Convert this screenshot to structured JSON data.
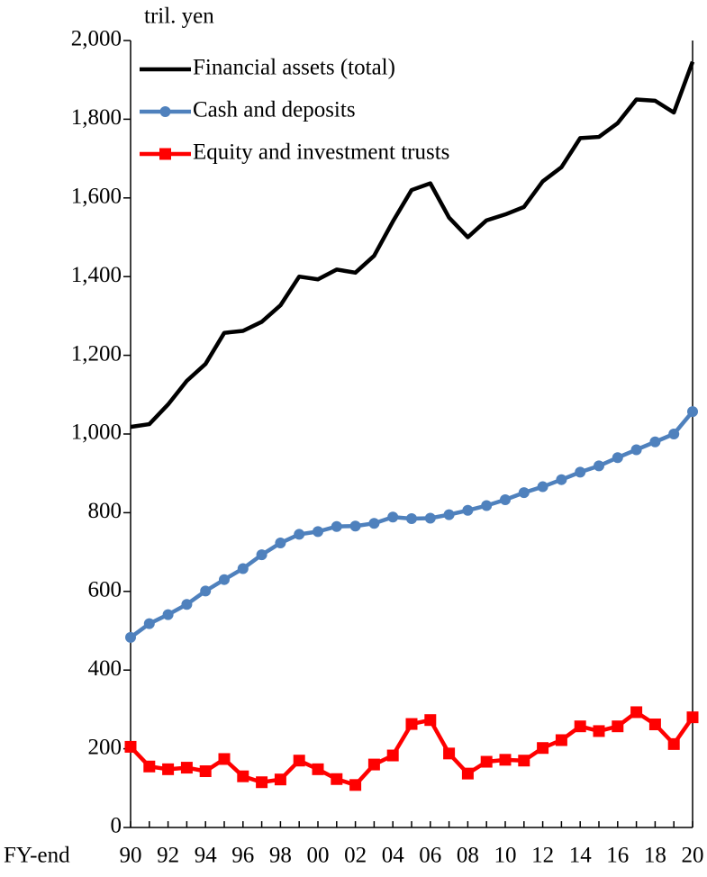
{
  "chart_data": {
    "type": "line",
    "y_label": "tril. yen",
    "x_label": "FY-end",
    "categories": [
      "90",
      null,
      "92",
      null,
      "94",
      null,
      "96",
      null,
      "98",
      null,
      "00",
      null,
      "02",
      null,
      "04",
      null,
      "06",
      null,
      "08",
      null,
      "10",
      null,
      "12",
      null,
      "14",
      null,
      "16",
      null,
      "18",
      null,
      "20"
    ],
    "series": [
      {
        "name": "Financial assets (total)",
        "color": "#000000",
        "values": [
          1018,
          1025,
          1075,
          1135,
          1178,
          1257,
          1262,
          1285,
          1327,
          1400,
          1393,
          1418,
          1410,
          1453,
          1540,
          1620,
          1637,
          1550,
          1500,
          1543,
          1558,
          1577,
          1642,
          1678,
          1752,
          1755,
          1790,
          1850,
          1847,
          1817,
          1946
        ]
      },
      {
        "name": "Cash and deposits",
        "color": "#4f81bd",
        "marker": "circle",
        "values": [
          483,
          518,
          541,
          567,
          601,
          630,
          658,
          693,
          723,
          745,
          752,
          765,
          766,
          773,
          789,
          785,
          786,
          795,
          806,
          818,
          833,
          851,
          866,
          884,
          903,
          919,
          940,
          960,
          980,
          1000,
          1057
        ]
      },
      {
        "name": "Equity and investment trusts",
        "color": "#ff0000",
        "marker": "square",
        "values": [
          205,
          155,
          148,
          152,
          143,
          174,
          130,
          115,
          122,
          170,
          148,
          123,
          108,
          160,
          183,
          263,
          273,
          188,
          137,
          167,
          172,
          170,
          202,
          222,
          257,
          245,
          257,
          293,
          262,
          212,
          280
        ]
      }
    ],
    "ylim": [
      0,
      2000
    ],
    "yticks": [
      0,
      200,
      400,
      600,
      800,
      {
        "value": 1000,
        "label": "1,000"
      },
      {
        "value": 1200,
        "label": "1,200"
      },
      {
        "value": 1400,
        "label": "1,400"
      },
      {
        "value": 1600,
        "label": "1,600"
      },
      {
        "value": 1800,
        "label": "1,800"
      },
      {
        "value": 2000,
        "label": "2,000"
      }
    ],
    "legend": "upper left"
  }
}
